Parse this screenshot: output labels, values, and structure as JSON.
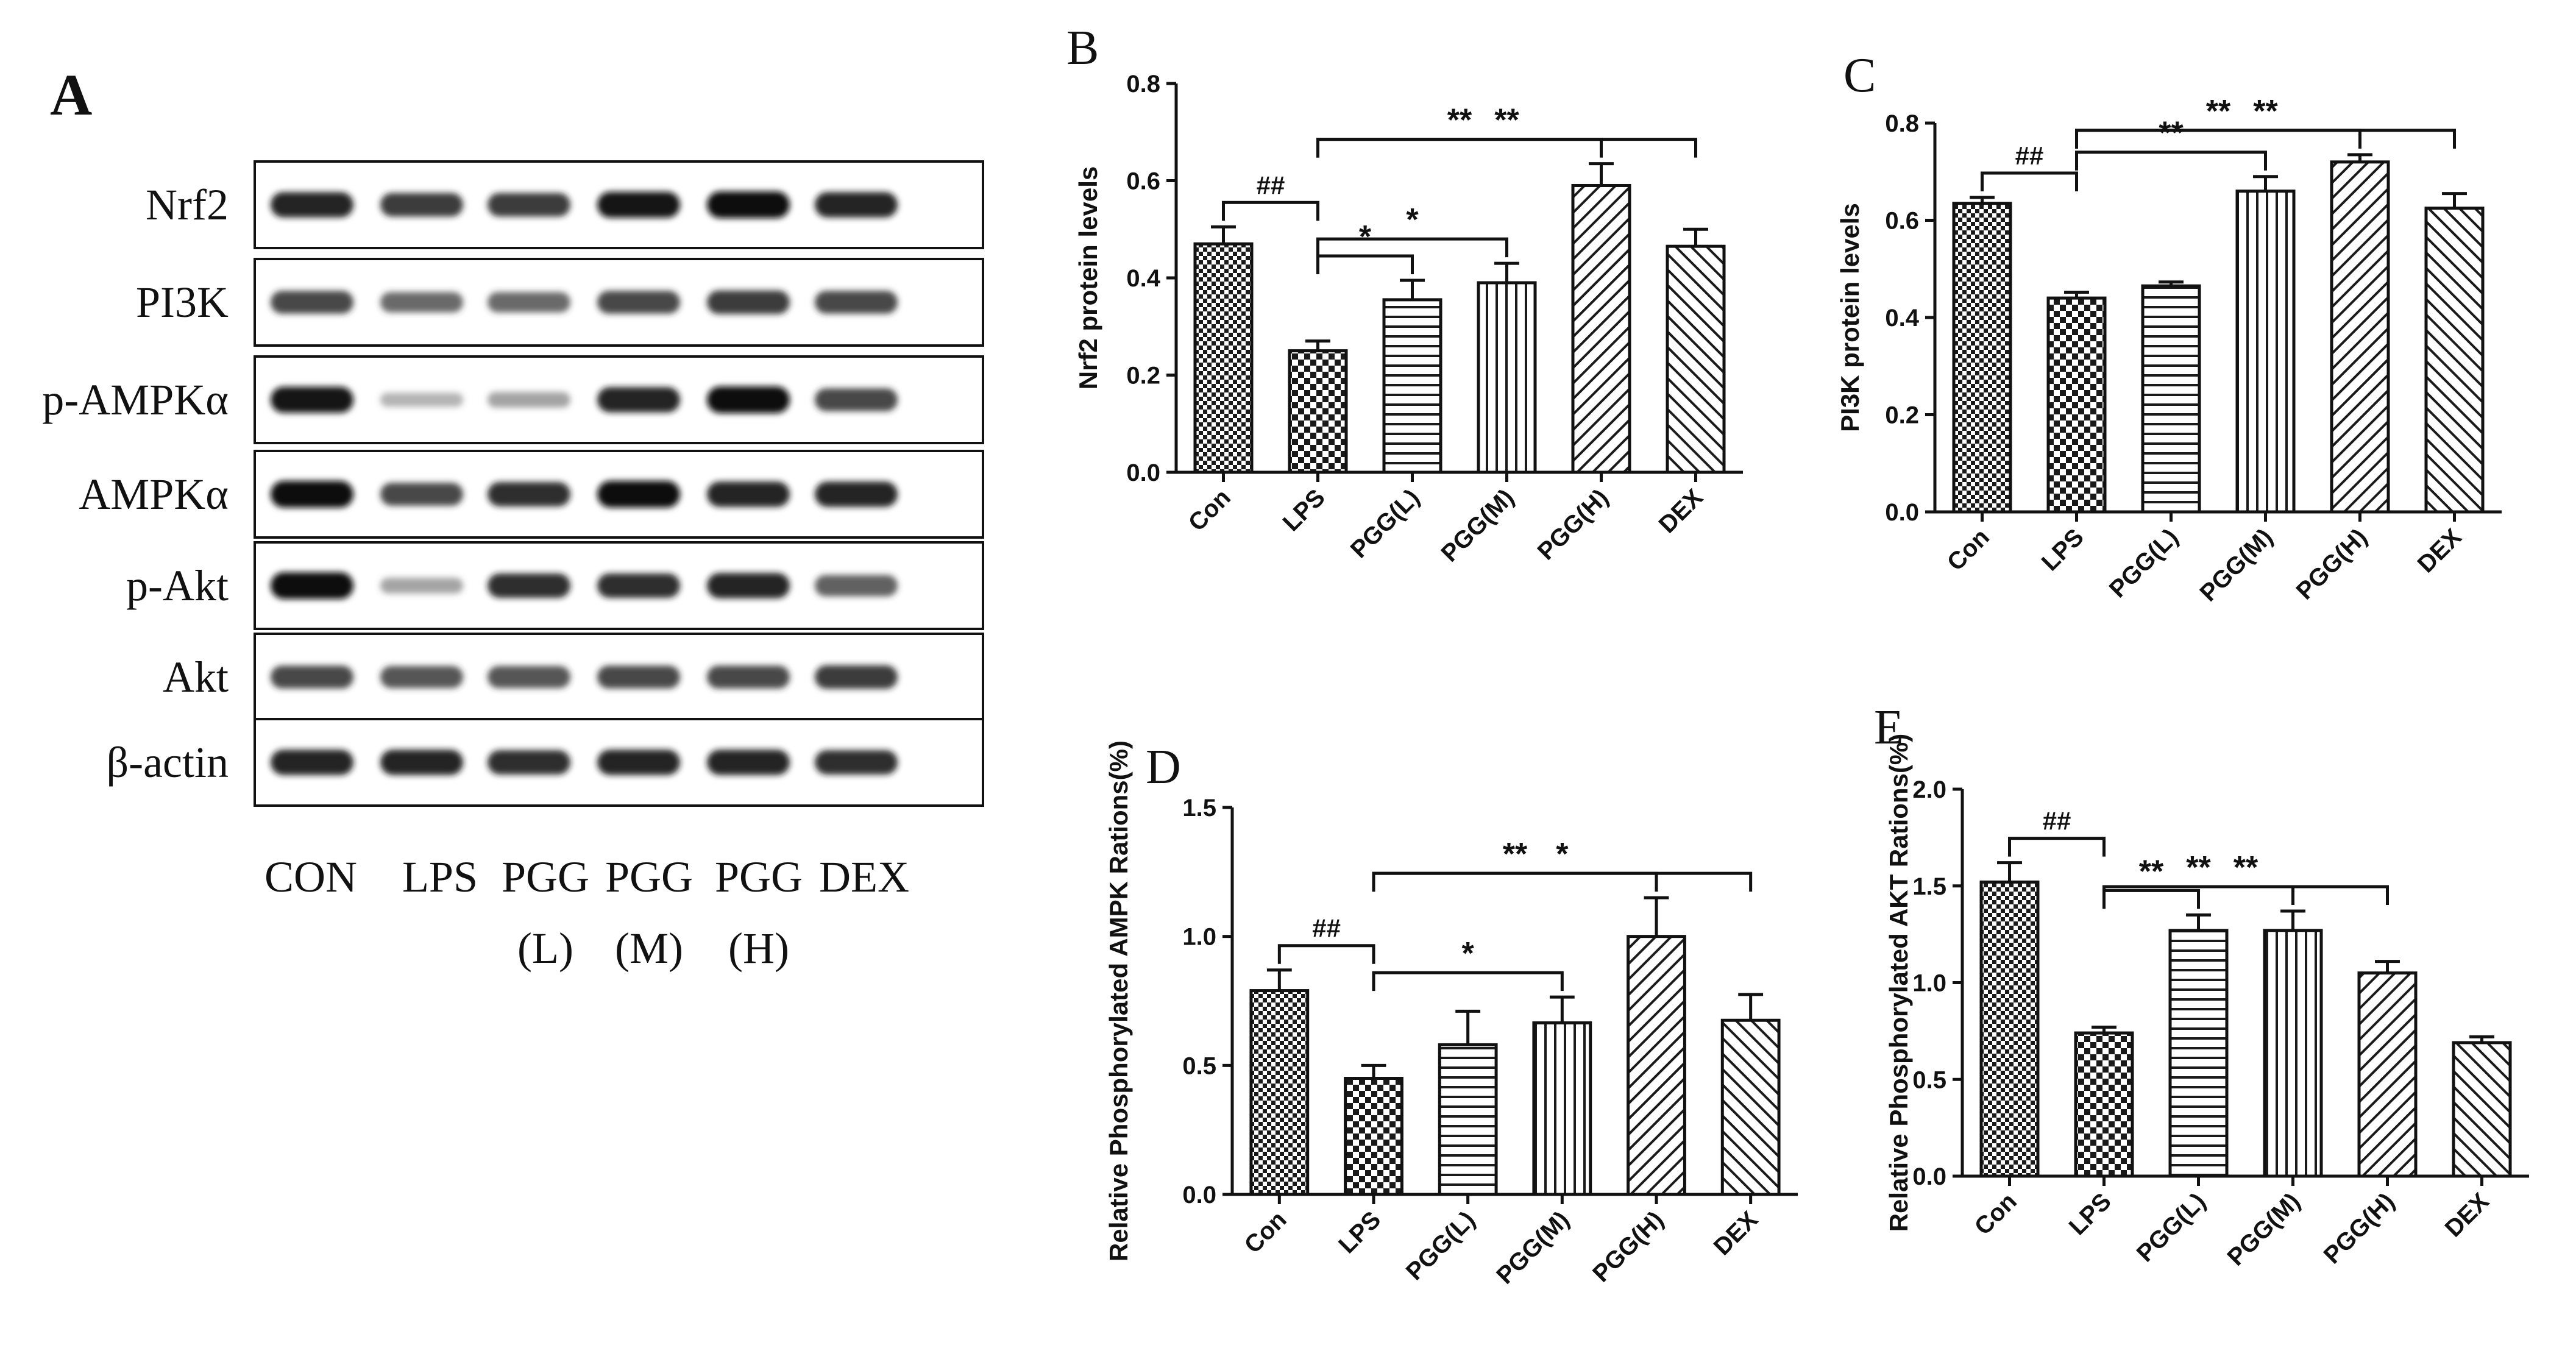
{
  "panel_a": {
    "label": "A",
    "rows": [
      "Nrf2",
      "PI3K",
      "p-AMPKα",
      "AMPKα",
      "p-Akt",
      "Akt",
      "β-actin"
    ],
    "lanes_top": [
      "CON",
      "LPS",
      "PGG",
      "PGG",
      "PGG",
      "DEX"
    ],
    "lanes_bottom": [
      "",
      "",
      "(L)",
      "(M)",
      "(H)",
      ""
    ],
    "band_intensity": [
      [
        0.9,
        0.8,
        0.8,
        0.95,
        1.0,
        0.9
      ],
      [
        0.75,
        0.6,
        0.6,
        0.75,
        0.8,
        0.75
      ],
      [
        0.95,
        0.2,
        0.3,
        0.9,
        1.0,
        0.75
      ],
      [
        1.0,
        0.75,
        0.85,
        1.0,
        0.9,
        0.9
      ],
      [
        1.0,
        0.3,
        0.85,
        0.85,
        0.9,
        0.65
      ],
      [
        0.75,
        0.7,
        0.7,
        0.75,
        0.75,
        0.8
      ],
      [
        0.9,
        0.9,
        0.85,
        0.9,
        0.9,
        0.85
      ]
    ]
  },
  "chart_data": [
    {
      "type": "bar",
      "panel": "B",
      "title": "",
      "xlabel": "",
      "ylabel": "Nrf2 protein levels",
      "categories": [
        "Con",
        "LPS",
        "PGG(L)",
        "PGG(M)",
        "PGG(H)",
        "DEX"
      ],
      "values": [
        0.47,
        0.25,
        0.355,
        0.39,
        0.59,
        0.465
      ],
      "errors": [
        0.035,
        0.02,
        0.04,
        0.04,
        0.045,
        0.035
      ],
      "ylim": [
        0,
        0.8
      ],
      "yticks": [
        "0.0",
        "0.2",
        "0.4",
        "0.6",
        "0.8"
      ],
      "significance": [
        {
          "from": 0,
          "to": 1,
          "label": "##"
        },
        {
          "from": 1,
          "to": 2,
          "label": "*"
        },
        {
          "from": 1,
          "to": 3,
          "label": "*"
        },
        {
          "from": 1,
          "to": 4,
          "label": "**"
        },
        {
          "from": 1,
          "to": 5,
          "label": "**"
        }
      ]
    },
    {
      "type": "bar",
      "panel": "C",
      "title": "",
      "xlabel": "",
      "ylabel": "PI3K protein levels",
      "categories": [
        "Con",
        "LPS",
        "PGG(L)",
        "PGG(M)",
        "PGG(H)",
        "DEX"
      ],
      "values": [
        0.635,
        0.44,
        0.465,
        0.66,
        0.72,
        0.625
      ],
      "errors": [
        0.012,
        0.012,
        0.008,
        0.03,
        0.015,
        0.03
      ],
      "ylim": [
        0,
        0.8
      ],
      "yticks": [
        "0.0",
        "0.2",
        "0.4",
        "0.6",
        "0.8"
      ],
      "significance": [
        {
          "from": 0,
          "to": 1,
          "label": "##"
        },
        {
          "from": 1,
          "to": 3,
          "label": "**"
        },
        {
          "from": 1,
          "to": 4,
          "label": "**"
        },
        {
          "from": 1,
          "to": 5,
          "label": "**"
        }
      ]
    },
    {
      "type": "bar",
      "panel": "D",
      "title": "",
      "xlabel": "",
      "ylabel": "Relative  Phosphorylated AMPK Rations(%)",
      "categories": [
        "Con",
        "LPS",
        "PGG(L)",
        "PGG(M)",
        "PGG(H)",
        "DEX"
      ],
      "values": [
        0.79,
        0.45,
        0.58,
        0.665,
        1.0,
        0.675
      ],
      "errors": [
        0.08,
        0.05,
        0.13,
        0.1,
        0.15,
        0.1
      ],
      "ylim": [
        0,
        1.5
      ],
      "yticks": [
        "0.0",
        "0.5",
        "1.0",
        "1.5"
      ],
      "significance": [
        {
          "from": 0,
          "to": 1,
          "label": "##"
        },
        {
          "from": 1,
          "to": 3,
          "label": "*"
        },
        {
          "from": 1,
          "to": 4,
          "label": "**"
        },
        {
          "from": 1,
          "to": 5,
          "label": "*"
        }
      ]
    },
    {
      "type": "bar",
      "panel": "E",
      "title": "",
      "xlabel": "",
      "ylabel": "Relative Phosphorylated AKT Rations(%)",
      "categories": [
        "Con",
        "LPS",
        "PGG(L)",
        "PGG(M)",
        "PGG(H)",
        "DEX"
      ],
      "values": [
        1.52,
        0.74,
        1.27,
        1.27,
        1.05,
        0.69
      ],
      "errors": [
        0.1,
        0.03,
        0.08,
        0.1,
        0.06,
        0.03
      ],
      "ylim": [
        0,
        2.0
      ],
      "yticks": [
        "0.0",
        "0.5",
        "1.0",
        "1.5",
        "2.0"
      ],
      "significance": [
        {
          "from": 0,
          "to": 1,
          "label": "##"
        },
        {
          "from": 1,
          "to": 2,
          "label": "**"
        },
        {
          "from": 1,
          "to": 3,
          "label": "**"
        },
        {
          "from": 1,
          "to": 4,
          "label": "**"
        }
      ]
    }
  ]
}
